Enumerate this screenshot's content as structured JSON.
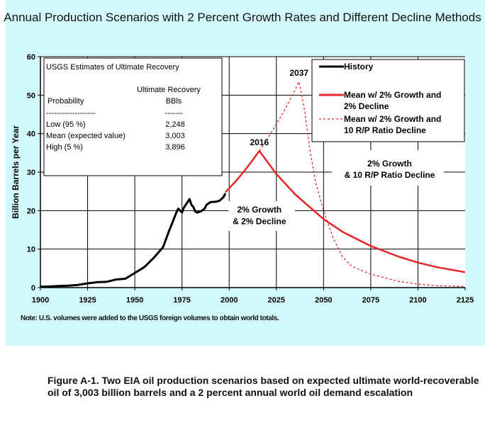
{
  "chart_data": {
    "type": "line",
    "title": "Annual Production Scenarios with 2 Percent Growth Rates and Different Decline Methods",
    "xlabel": "",
    "ylabel": "Billion Barrels per Year",
    "xlim": [
      1900,
      2125
    ],
    "ylim": [
      0,
      60
    ],
    "x_ticks": [
      "1900",
      "1925",
      "1950",
      "1975",
      "2000",
      "2025",
      "2050",
      "2075",
      "2100",
      "2125"
    ],
    "y_ticks": [
      "0",
      "10",
      "20",
      "30",
      "40",
      "50",
      "60"
    ],
    "grid": true,
    "legend_placement": "top-right",
    "series": [
      {
        "name": "History",
        "color": "#000000",
        "style": "solid",
        "x": [
          1900,
          1905,
          1910,
          1915,
          1920,
          1925,
          1930,
          1935,
          1940,
          1945,
          1950,
          1955,
          1960,
          1965,
          1968,
          1970,
          1972,
          1973,
          1974,
          1975,
          1976,
          1977,
          1979,
          1980,
          1981,
          1982,
          1983,
          1985,
          1987,
          1988,
          1990,
          1993,
          1995,
          1997,
          1998
        ],
        "y": [
          0.2,
          0.3,
          0.4,
          0.5,
          0.7,
          1.1,
          1.4,
          1.5,
          2.1,
          2.3,
          3.8,
          5.3,
          7.7,
          10.5,
          14.5,
          17,
          19.5,
          20.5,
          20,
          19.5,
          20.8,
          21.5,
          23,
          21.5,
          21,
          19.8,
          19.5,
          19.8,
          20.5,
          21.5,
          22.2,
          22.3,
          22.6,
          23.5,
          24.5
        ]
      },
      {
        "name": "Mean w/ 2% Growth and 2% Decline",
        "color": "#e8262a",
        "style": "solid",
        "x": [
          1998,
          2004,
          2010,
          2016,
          2025,
          2035,
          2050,
          2060,
          2075,
          2090,
          2100,
          2110,
          2125
        ],
        "y": [
          24.8,
          27.9,
          31.5,
          35.5,
          29.5,
          24.2,
          17.8,
          14.5,
          10.8,
          8.0,
          6.5,
          5.3,
          4.0
        ]
      },
      {
        "name": "Mean w/ 2% Growth and 10 R/P Ratio Decline",
        "color": "#e8262a",
        "style": "dashed",
        "x": [
          2016,
          2022,
          2028,
          2033,
          2037,
          2040,
          2043,
          2046,
          2050,
          2055,
          2060,
          2065,
          2075,
          2090,
          2100,
          2110,
          2125
        ],
        "y": [
          35.5,
          40,
          45,
          49.5,
          53.5,
          46,
          35,
          27,
          20,
          13,
          8,
          5.5,
          3.5,
          1.6,
          0.9,
          0.5,
          0.3
        ]
      }
    ],
    "annotations": [
      {
        "text": "2037",
        "x": 2037,
        "y": 55
      },
      {
        "text": "2016",
        "x": 2016,
        "y": 37
      },
      {
        "text": "2% Growth",
        "x": 2016,
        "y": 19.5
      },
      {
        "text": "& 2% Decline",
        "x": 2016,
        "y": 16.5
      },
      {
        "text": "2% Growth",
        "x": 2085,
        "y": 31.5
      },
      {
        "text": "& 10 R/P Ratio Decline",
        "x": 2085,
        "y": 28.5
      }
    ],
    "usgs_table": {
      "title": "USGS Estimates of Ultimate Recovery",
      "col1_header": "Probability",
      "col2_header_line1": "Ultimate Recovery",
      "col2_header_line2": "BBls",
      "col1_rule": "-------------------",
      "col2_rule": "-------",
      "rows": [
        {
          "label": "Low (95 %)",
          "value": "2,248"
        },
        {
          "label": "Mean (expected value)",
          "value": "3,003"
        },
        {
          "label": "High (5 %)",
          "value": "3,896"
        }
      ]
    },
    "legend": [
      {
        "line1": "History",
        "line2": ""
      },
      {
        "line1": "Mean w/ 2% Growth and",
        "line2": "2% Decline"
      },
      {
        "line1": "Mean w/ 2% Growth and",
        "line2": "10 R/P Ratio Decline"
      }
    ],
    "note": "Note:  U.S. volumes were added to the USGS foreign volumes to obtain world totals."
  },
  "caption": "Figure A-1.  Two EIA oil production scenarios based on expected ultimate world-recoverable oil of 3,003 billion barrels and a 2 percent annual world oil demand escalation"
}
